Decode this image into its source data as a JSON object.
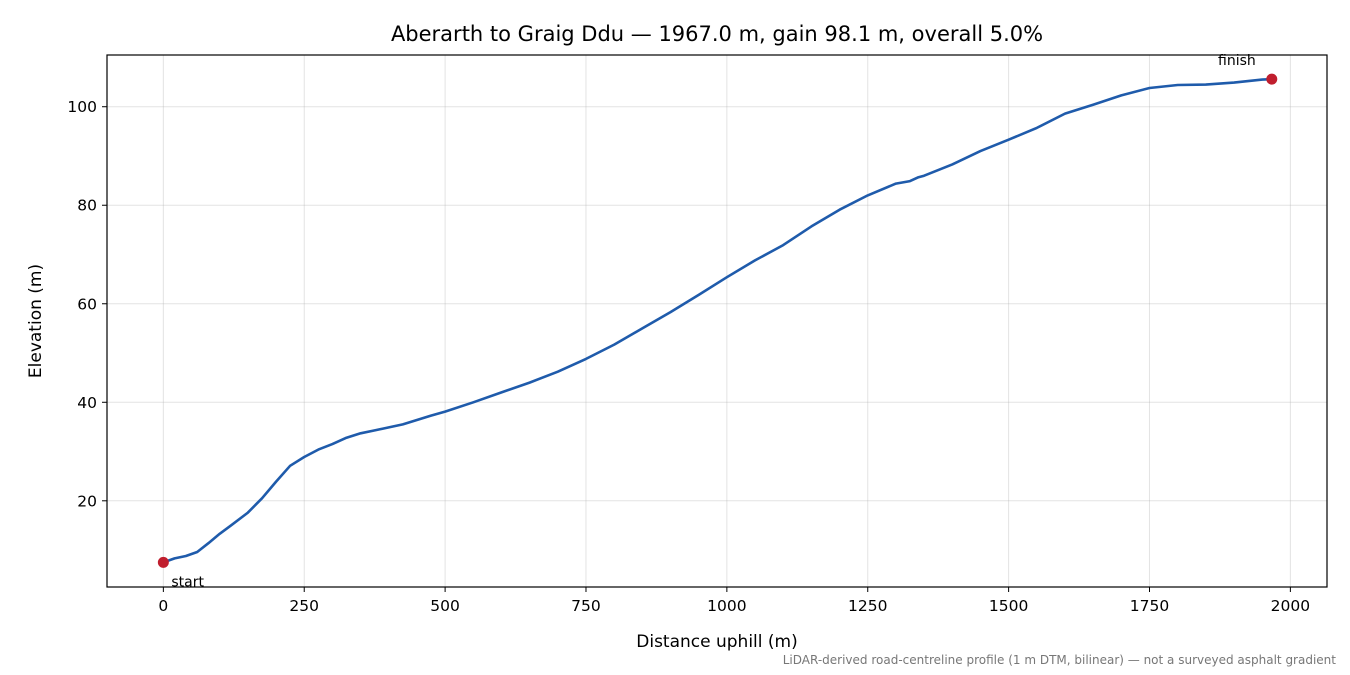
{
  "chart_data": {
    "type": "line",
    "title": "Aberarth to Graig Ddu — 1967.0 m, gain 98.1 m, overall 5.0%",
    "xlabel": "Distance uphill (m)",
    "ylabel": "Elevation (m)",
    "xlim": [
      -100,
      2065
    ],
    "ylim": [
      2.5,
      110.5
    ],
    "xticks": [
      0,
      250,
      500,
      750,
      1000,
      1250,
      1500,
      1750,
      2000
    ],
    "yticks": [
      20,
      40,
      60,
      80,
      100
    ],
    "grid": true,
    "line_color": "#1f5bab",
    "marker_color": "#c01e2e",
    "series": [
      {
        "x": [
          0,
          20,
          40,
          60,
          80,
          100,
          120,
          150,
          175,
          200,
          225,
          250,
          275,
          300,
          325,
          350,
          375,
          400,
          425,
          450,
          475,
          500,
          550,
          600,
          650,
          700,
          750,
          800,
          850,
          900,
          950,
          1000,
          1050,
          1100,
          1150,
          1200,
          1250,
          1300,
          1325,
          1340,
          1350,
          1400,
          1450,
          1500,
          1550,
          1600,
          1650,
          1700,
          1750,
          1800,
          1850,
          1900,
          1950,
          1967
        ],
        "y": [
          7.5,
          8.3,
          8.8,
          9.6,
          11.4,
          13.3,
          15.0,
          17.6,
          20.5,
          23.9,
          27.1,
          28.9,
          30.4,
          31.5,
          32.8,
          33.7,
          34.3,
          34.9,
          35.5,
          36.4,
          37.3,
          38.1,
          40.0,
          42.0,
          44.0,
          46.2,
          48.8,
          51.7,
          55.0,
          58.3,
          61.8,
          65.4,
          68.8,
          71.9,
          75.7,
          79.1,
          82.0,
          84.4,
          84.9,
          85.7,
          86.0,
          88.3,
          91.0,
          93.3,
          95.7,
          98.6,
          100.4,
          102.3,
          103.8,
          104.4,
          104.5,
          104.9,
          105.5,
          105.6
        ]
      }
    ],
    "annotations": [
      {
        "text": "start",
        "x": 0,
        "y": 7.5
      },
      {
        "text": "finish",
        "x": 1967,
        "y": 105.6
      }
    ],
    "footnote": "LiDAR-derived road-centreline profile (1 m DTM, bilinear) — not a surveyed asphalt gradient"
  }
}
